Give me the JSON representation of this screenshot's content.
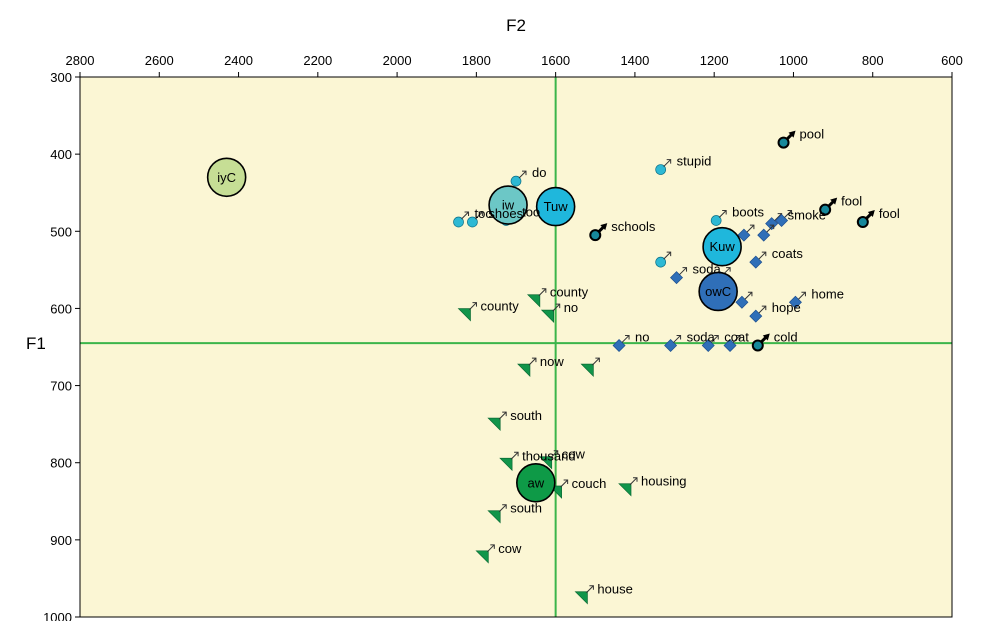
{
  "chart_data": {
    "type": "scatter",
    "title": "",
    "xlabel": "F2",
    "ylabel": "F1",
    "xlim": [
      2800,
      600
    ],
    "ylim": [
      300,
      1000
    ],
    "x_reversed": true,
    "y_reversed": true,
    "x_ticks": [
      "2800",
      "2600",
      "2400",
      "2200",
      "2000",
      "1800",
      "1600",
      "1400",
      "1200",
      "1000",
      "800",
      "600"
    ],
    "y_ticks": [
      "300",
      "400",
      "500",
      "600",
      "700",
      "800",
      "900",
      "1000"
    ],
    "grid": false,
    "background": "#fbf6d4",
    "reference_lines": {
      "x": 1600,
      "y": 645,
      "color": "#3bb54a"
    },
    "centroids": [
      {
        "label": "iyC",
        "x": 2430,
        "y": 430,
        "color": "#c6de95"
      },
      {
        "label": "iw",
        "x": 1720,
        "y": 466,
        "color": "#6cc7c6"
      },
      {
        "label": "Tuw",
        "x": 1600,
        "y": 468,
        "color": "#1fb7dc"
      },
      {
        "label": "Kuw",
        "x": 1180,
        "y": 520,
        "color": "#1fb7dc"
      },
      {
        "label": "owC",
        "x": 1190,
        "y": 578,
        "color": "#2f6fb8"
      },
      {
        "label": "aw",
        "x": 1650,
        "y": 826,
        "color": "#0e9a47"
      }
    ],
    "series": [
      {
        "marker": "male-circle-dark",
        "color": "#17889b",
        "points": [
          {
            "x": 1025,
            "y": 385,
            "label": "pool"
          },
          {
            "x": 920,
            "y": 472,
            "label": "fool"
          },
          {
            "x": 825,
            "y": 488,
            "label": "fool"
          },
          {
            "x": 1500,
            "y": 505,
            "label": "schools"
          },
          {
            "x": 1090,
            "y": 648,
            "label": "cold"
          }
        ]
      },
      {
        "marker": "male-circle",
        "color": "#2db9d4",
        "points": [
          {
            "x": 1335,
            "y": 420,
            "label": "stupid"
          },
          {
            "x": 1700,
            "y": 435,
            "label": "do"
          },
          {
            "x": 1195,
            "y": 486,
            "label": "boots"
          },
          {
            "x": 1845,
            "y": 488,
            "label": "too"
          },
          {
            "x": 1810,
            "y": 488,
            "label": "shoes"
          },
          {
            "x": 1725,
            "y": 486,
            "label": "too"
          },
          {
            "x": 1335,
            "y": 540,
            "label": ""
          }
        ]
      },
      {
        "marker": "male-diamond",
        "color": "#2f6fb8",
        "points": [
          {
            "x": 1055,
            "y": 490,
            "label": "smoke"
          },
          {
            "x": 1030,
            "y": 486,
            "label": ""
          },
          {
            "x": 1125,
            "y": 505,
            "label": ""
          },
          {
            "x": 1075,
            "y": 505,
            "label": ""
          },
          {
            "x": 1095,
            "y": 540,
            "label": "coats"
          },
          {
            "x": 1295,
            "y": 560,
            "label": "soda"
          },
          {
            "x": 1185,
            "y": 560,
            "label": ""
          },
          {
            "x": 1130,
            "y": 592,
            "label": ""
          },
          {
            "x": 1095,
            "y": 610,
            "label": "hope"
          },
          {
            "x": 995,
            "y": 592,
            "label": "home"
          },
          {
            "x": 1440,
            "y": 648,
            "label": "no"
          },
          {
            "x": 1310,
            "y": 648,
            "label": "soda"
          },
          {
            "x": 1215,
            "y": 648,
            "label": "coat"
          },
          {
            "x": 1160,
            "y": 648,
            "label": ""
          }
        ]
      },
      {
        "marker": "male-triangle",
        "color": "#11954a",
        "points": [
          {
            "x": 1830,
            "y": 608,
            "label": "county"
          },
          {
            "x": 1655,
            "y": 590,
            "label": "county"
          },
          {
            "x": 1620,
            "y": 610,
            "label": "no"
          },
          {
            "x": 1680,
            "y": 680,
            "label": "now"
          },
          {
            "x": 1520,
            "y": 680,
            "label": ""
          },
          {
            "x": 1755,
            "y": 750,
            "label": "south"
          },
          {
            "x": 1725,
            "y": 802,
            "label": "thousand"
          },
          {
            "x": 1625,
            "y": 800,
            "label": "cow"
          },
          {
            "x": 1600,
            "y": 838,
            "label": "couch"
          },
          {
            "x": 1425,
            "y": 835,
            "label": "housing"
          },
          {
            "x": 1755,
            "y": 870,
            "label": "south"
          },
          {
            "x": 1785,
            "y": 922,
            "label": "cow"
          },
          {
            "x": 1535,
            "y": 975,
            "label": "house"
          }
        ]
      }
    ]
  }
}
